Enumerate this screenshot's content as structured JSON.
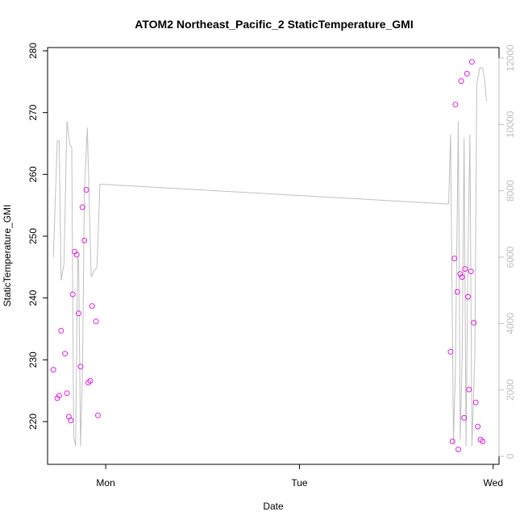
{
  "chart_data": {
    "type": "scatter",
    "title": "ATOM2 Northeast_Pacific_2 StaticTemperature_GMI",
    "xlabel": "Date",
    "ylabel": "StaticTemperature_GMI",
    "x_ticks": [
      {
        "label": "Mon",
        "value": 1.0
      },
      {
        "label": "Tue",
        "value": 2.0
      },
      {
        "label": "Wed",
        "value": 3.0
      }
    ],
    "xlim": [
      0.7,
      3.03
    ],
    "ylim": [
      214,
      281
    ],
    "y_ticks": [
      220,
      230,
      240,
      250,
      260,
      270,
      280
    ],
    "y2lim": [
      -100,
      12200
    ],
    "y2_ticks": [
      0,
      2000,
      4000,
      6000,
      8000,
      10000,
      12000
    ],
    "grid": false,
    "colors": {
      "points": "#e020e0",
      "line": "#c0c0c0",
      "axis": "#000000",
      "right_axis": "#bebebe"
    },
    "series": [
      {
        "kind": "points",
        "axis": "left",
        "points": [
          [
            0.73,
            228.4
          ],
          [
            0.75,
            223.8
          ],
          [
            0.76,
            224.2
          ],
          [
            0.77,
            234.7
          ],
          [
            0.79,
            231.0
          ],
          [
            0.8,
            224.6
          ],
          [
            0.81,
            220.8
          ],
          [
            0.82,
            220.2
          ],
          [
            0.83,
            240.6
          ],
          [
            0.84,
            247.5
          ],
          [
            0.85,
            247.0
          ],
          [
            0.86,
            237.5
          ],
          [
            0.87,
            228.9
          ],
          [
            0.88,
            254.7
          ],
          [
            0.89,
            249.3
          ],
          [
            0.9,
            257.5
          ],
          [
            0.91,
            226.3
          ],
          [
            0.92,
            226.6
          ],
          [
            0.93,
            238.7
          ],
          [
            0.95,
            236.2
          ],
          [
            0.96,
            221.0
          ],
          [
            2.78,
            231.3
          ],
          [
            2.79,
            216.8
          ],
          [
            2.8,
            246.4
          ],
          [
            2.805,
            271.3
          ],
          [
            2.815,
            241.0
          ],
          [
            2.82,
            215.5
          ],
          [
            2.83,
            243.9
          ],
          [
            2.835,
            275.1
          ],
          [
            2.84,
            243.4
          ],
          [
            2.85,
            220.6
          ],
          [
            2.855,
            244.7
          ],
          [
            2.865,
            276.3
          ],
          [
            2.87,
            240.2
          ],
          [
            2.875,
            225.2
          ],
          [
            2.885,
            244.3
          ],
          [
            2.89,
            278.2
          ],
          [
            2.9,
            236.0
          ],
          [
            2.91,
            223.1
          ],
          [
            2.92,
            219.2
          ],
          [
            2.935,
            217.1
          ],
          [
            2.945,
            216.8
          ]
        ]
      },
      {
        "kind": "line",
        "axis": "right",
        "points": [
          [
            0.73,
            6000
          ],
          [
            0.75,
            9500
          ],
          [
            0.76,
            9500
          ],
          [
            0.77,
            5300
          ],
          [
            0.785,
            5800
          ],
          [
            0.8,
            10100
          ],
          [
            0.815,
            9400
          ],
          [
            0.825,
            9300
          ],
          [
            0.835,
            600
          ],
          [
            0.845,
            300
          ],
          [
            0.855,
            6000
          ],
          [
            0.86,
            5900
          ],
          [
            0.87,
            300
          ],
          [
            0.88,
            2500
          ],
          [
            0.89,
            8000
          ],
          [
            0.905,
            9900
          ],
          [
            0.925,
            5400
          ],
          [
            0.94,
            5600
          ],
          [
            0.955,
            5700
          ],
          [
            0.97,
            8200
          ],
          [
            2.77,
            7600
          ],
          [
            2.78,
            9700
          ],
          [
            2.795,
            400
          ],
          [
            2.805,
            2600
          ],
          [
            2.82,
            10100
          ],
          [
            2.83,
            500
          ],
          [
            2.84,
            3000
          ],
          [
            2.85,
            9600
          ],
          [
            2.86,
            300
          ],
          [
            2.87,
            6000
          ],
          [
            2.88,
            9700
          ],
          [
            2.89,
            300
          ],
          [
            2.905,
            3000
          ],
          [
            2.915,
            11200
          ],
          [
            2.93,
            11700
          ],
          [
            2.945,
            11700
          ],
          [
            2.955,
            11400
          ],
          [
            2.965,
            10700
          ]
        ]
      }
    ]
  }
}
